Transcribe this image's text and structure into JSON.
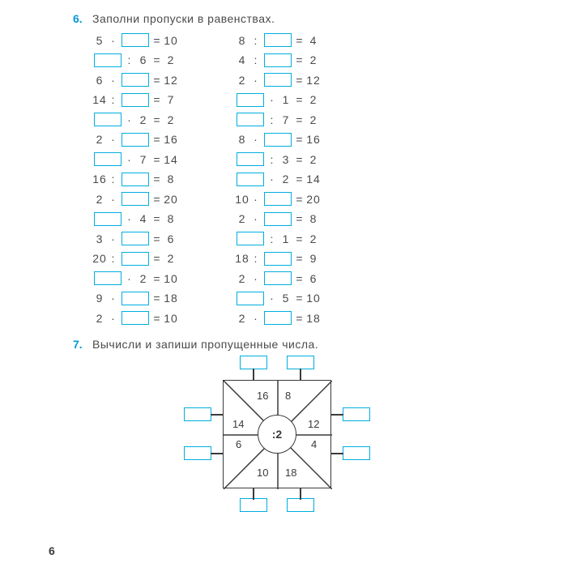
{
  "task6": {
    "num": "6.",
    "title": "Заполни пропуски в равенствах.",
    "left": [
      [
        {
          "t": "n",
          "v": "5"
        },
        {
          "t": "o",
          "v": "·"
        },
        {
          "t": "b"
        },
        {
          "t": "e",
          "v": "="
        },
        {
          "t": "n",
          "v": "10"
        }
      ],
      [
        {
          "t": "b"
        },
        {
          "t": "o",
          "v": ":"
        },
        {
          "t": "n",
          "v": "6"
        },
        {
          "t": "e",
          "v": "="
        },
        {
          "t": "n",
          "v": "2"
        }
      ],
      [
        {
          "t": "n",
          "v": "6"
        },
        {
          "t": "o",
          "v": "·"
        },
        {
          "t": "b"
        },
        {
          "t": "e",
          "v": "="
        },
        {
          "t": "n",
          "v": "12"
        }
      ],
      [
        {
          "t": "n",
          "v": "14"
        },
        {
          "t": "o",
          "v": ":"
        },
        {
          "t": "b"
        },
        {
          "t": "e",
          "v": "="
        },
        {
          "t": "n",
          "v": "7"
        }
      ],
      [
        {
          "t": "b"
        },
        {
          "t": "o",
          "v": "·"
        },
        {
          "t": "n",
          "v": "2"
        },
        {
          "t": "e",
          "v": "="
        },
        {
          "t": "n",
          "v": "2"
        }
      ],
      [
        {
          "t": "n",
          "v": "2"
        },
        {
          "t": "o",
          "v": "·"
        },
        {
          "t": "b"
        },
        {
          "t": "e",
          "v": "="
        },
        {
          "t": "n",
          "v": "16"
        }
      ],
      [
        {
          "t": "b"
        },
        {
          "t": "o",
          "v": "·"
        },
        {
          "t": "n",
          "v": "7"
        },
        {
          "t": "e",
          "v": "="
        },
        {
          "t": "n",
          "v": "14"
        }
      ],
      [
        {
          "t": "n",
          "v": "16"
        },
        {
          "t": "o",
          "v": ":"
        },
        {
          "t": "b"
        },
        {
          "t": "e",
          "v": "="
        },
        {
          "t": "n",
          "v": "8"
        }
      ],
      [
        {
          "t": "n",
          "v": "2"
        },
        {
          "t": "o",
          "v": "·"
        },
        {
          "t": "b"
        },
        {
          "t": "e",
          "v": "="
        },
        {
          "t": "n",
          "v": "20"
        }
      ],
      [
        {
          "t": "b"
        },
        {
          "t": "o",
          "v": "·"
        },
        {
          "t": "n",
          "v": "4"
        },
        {
          "t": "e",
          "v": "="
        },
        {
          "t": "n",
          "v": "8"
        }
      ],
      [
        {
          "t": "n",
          "v": "3"
        },
        {
          "t": "o",
          "v": "·"
        },
        {
          "t": "b"
        },
        {
          "t": "e",
          "v": "="
        },
        {
          "t": "n",
          "v": "6"
        }
      ],
      [
        {
          "t": "n",
          "v": "20"
        },
        {
          "t": "o",
          "v": ":"
        },
        {
          "t": "b"
        },
        {
          "t": "e",
          "v": "="
        },
        {
          "t": "n",
          "v": "2"
        }
      ],
      [
        {
          "t": "b"
        },
        {
          "t": "o",
          "v": "·"
        },
        {
          "t": "n",
          "v": "2"
        },
        {
          "t": "e",
          "v": "="
        },
        {
          "t": "n",
          "v": "10"
        }
      ],
      [
        {
          "t": "n",
          "v": "9"
        },
        {
          "t": "o",
          "v": "·"
        },
        {
          "t": "b"
        },
        {
          "t": "e",
          "v": "="
        },
        {
          "t": "n",
          "v": "18"
        }
      ],
      [
        {
          "t": "n",
          "v": "2"
        },
        {
          "t": "o",
          "v": "·"
        },
        {
          "t": "b"
        },
        {
          "t": "e",
          "v": "="
        },
        {
          "t": "n",
          "v": "10"
        }
      ]
    ],
    "right": [
      [
        {
          "t": "n",
          "v": "8"
        },
        {
          "t": "o",
          "v": ":"
        },
        {
          "t": "b"
        },
        {
          "t": "e",
          "v": "="
        },
        {
          "t": "n",
          "v": "4"
        }
      ],
      [
        {
          "t": "n",
          "v": "4"
        },
        {
          "t": "o",
          "v": ":"
        },
        {
          "t": "b"
        },
        {
          "t": "e",
          "v": "="
        },
        {
          "t": "n",
          "v": "2"
        }
      ],
      [
        {
          "t": "n",
          "v": "2"
        },
        {
          "t": "o",
          "v": "·"
        },
        {
          "t": "b"
        },
        {
          "t": "e",
          "v": "="
        },
        {
          "t": "n",
          "v": "12"
        }
      ],
      [
        {
          "t": "b"
        },
        {
          "t": "o",
          "v": "·"
        },
        {
          "t": "n",
          "v": "1"
        },
        {
          "t": "e",
          "v": "="
        },
        {
          "t": "n",
          "v": "2"
        }
      ],
      [
        {
          "t": "b"
        },
        {
          "t": "o",
          "v": ":"
        },
        {
          "t": "n",
          "v": "7"
        },
        {
          "t": "e",
          "v": "="
        },
        {
          "t": "n",
          "v": "2"
        }
      ],
      [
        {
          "t": "n",
          "v": "8"
        },
        {
          "t": "o",
          "v": "·"
        },
        {
          "t": "b"
        },
        {
          "t": "e",
          "v": "="
        },
        {
          "t": "n",
          "v": "16"
        }
      ],
      [
        {
          "t": "b"
        },
        {
          "t": "o",
          "v": ":"
        },
        {
          "t": "n",
          "v": "3"
        },
        {
          "t": "e",
          "v": "="
        },
        {
          "t": "n",
          "v": "2"
        }
      ],
      [
        {
          "t": "b"
        },
        {
          "t": "o",
          "v": "·"
        },
        {
          "t": "n",
          "v": "2"
        },
        {
          "t": "e",
          "v": "="
        },
        {
          "t": "n",
          "v": "14"
        }
      ],
      [
        {
          "t": "n",
          "v": "10"
        },
        {
          "t": "o",
          "v": "·"
        },
        {
          "t": "b"
        },
        {
          "t": "e",
          "v": "="
        },
        {
          "t": "n",
          "v": "20"
        }
      ],
      [
        {
          "t": "n",
          "v": "2"
        },
        {
          "t": "o",
          "v": "·"
        },
        {
          "t": "b"
        },
        {
          "t": "e",
          "v": "="
        },
        {
          "t": "n",
          "v": "8"
        }
      ],
      [
        {
          "t": "b"
        },
        {
          "t": "o",
          "v": ":"
        },
        {
          "t": "n",
          "v": "1"
        },
        {
          "t": "e",
          "v": "="
        },
        {
          "t": "n",
          "v": "2"
        }
      ],
      [
        {
          "t": "n",
          "v": "18"
        },
        {
          "t": "o",
          "v": ":"
        },
        {
          "t": "b"
        },
        {
          "t": "e",
          "v": "="
        },
        {
          "t": "n",
          "v": "9"
        }
      ],
      [
        {
          "t": "n",
          "v": "2"
        },
        {
          "t": "o",
          "v": "·"
        },
        {
          "t": "b"
        },
        {
          "t": "e",
          "v": "="
        },
        {
          "t": "n",
          "v": "6"
        }
      ],
      [
        {
          "t": "b"
        },
        {
          "t": "o",
          "v": "·"
        },
        {
          "t": "n",
          "v": "5"
        },
        {
          "t": "e",
          "v": "="
        },
        {
          "t": "n",
          "v": "10"
        }
      ],
      [
        {
          "t": "n",
          "v": "2"
        },
        {
          "t": "o",
          "v": "·"
        },
        {
          "t": "b"
        },
        {
          "t": "e",
          "v": "="
        },
        {
          "t": "n",
          "v": "18"
        }
      ]
    ]
  },
  "task7": {
    "num": "7.",
    "title": "Вычисли и запиши пропущенные числа.",
    "center": ":2",
    "segments": {
      "tl": "16",
      "tr": "8",
      "ml": "14",
      "mr": "12",
      "ml2": "6",
      "mr2": "4",
      "bl": "10",
      "br": "18"
    }
  },
  "pageNumber": "6",
  "colors": {
    "accent": "#00aee0",
    "text": "#4a4a4a",
    "line": "#3a3a3a"
  }
}
